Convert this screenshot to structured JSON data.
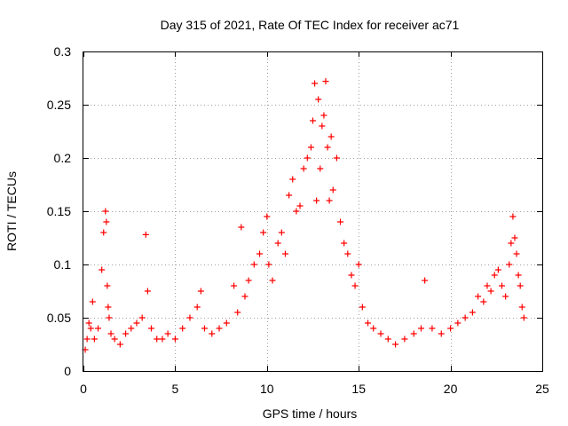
{
  "chart_data": {
    "type": "scatter",
    "title": "Day 315 of 2021, Rate Of TEC Index for receiver ac71",
    "xlabel": "GPS time / hours",
    "ylabel": "ROTI / TECUs",
    "xlim": [
      0,
      25
    ],
    "ylim": [
      0,
      0.3
    ],
    "x_ticks": [
      0,
      5,
      10,
      15,
      20,
      25
    ],
    "y_ticks": [
      0,
      0.05,
      0.1,
      0.15,
      0.2,
      0.25,
      0.3
    ],
    "x_tick_labels": [
      "0",
      "5",
      "10",
      "15",
      "20",
      "25"
    ],
    "y_tick_labels": [
      "0",
      "0.05",
      "0.1",
      "0.15",
      "0.2",
      "0.25",
      "0.3"
    ],
    "grid": true,
    "legend": "none",
    "marker": "plus",
    "color": "#ff0000",
    "series": [
      {
        "x": [
          0.1,
          0.2,
          0.3,
          0.4,
          0.5,
          0.6,
          0.8,
          1.0,
          1.1,
          1.2,
          1.25,
          1.3,
          1.35,
          1.4,
          1.5,
          1.7,
          2.0,
          2.3,
          2.6,
          2.9,
          3.2,
          3.4,
          3.5,
          3.7,
          4.0,
          4.3,
          4.6,
          5.0,
          5.4,
          5.8,
          6.2,
          6.4,
          6.6,
          7.0,
          7.4,
          7.8,
          8.2,
          8.4,
          8.6,
          8.8,
          9.0,
          9.3,
          9.6,
          9.8,
          10.0,
          10.1,
          10.3,
          10.6,
          10.8,
          11.0,
          11.2,
          11.4,
          11.6,
          11.8,
          12.0,
          12.2,
          12.4,
          12.5,
          12.6,
          12.7,
          12.8,
          12.9,
          13.0,
          13.1,
          13.2,
          13.3,
          13.4,
          13.5,
          13.6,
          13.8,
          14.0,
          14.2,
          14.4,
          14.6,
          14.8,
          15.0,
          15.2,
          15.5,
          15.8,
          16.2,
          16.6,
          17.0,
          17.5,
          18.0,
          18.4,
          18.6,
          19.0,
          19.5,
          20.0,
          20.4,
          20.8,
          21.2,
          21.5,
          21.8,
          22.0,
          22.2,
          22.4,
          22.6,
          22.8,
          23.0,
          23.2,
          23.3,
          23.4,
          23.5,
          23.6,
          23.7,
          23.8,
          23.9,
          24.0
        ],
        "y": [
          0.02,
          0.03,
          0.045,
          0.04,
          0.065,
          0.03,
          0.04,
          0.095,
          0.13,
          0.15,
          0.14,
          0.08,
          0.06,
          0.05,
          0.035,
          0.03,
          0.025,
          0.035,
          0.04,
          0.045,
          0.05,
          0.128,
          0.075,
          0.04,
          0.03,
          0.03,
          0.035,
          0.03,
          0.04,
          0.05,
          0.06,
          0.075,
          0.04,
          0.035,
          0.04,
          0.045,
          0.08,
          0.055,
          0.135,
          0.07,
          0.085,
          0.1,
          0.11,
          0.13,
          0.145,
          0.1,
          0.085,
          0.12,
          0.13,
          0.11,
          0.165,
          0.18,
          0.15,
          0.155,
          0.19,
          0.2,
          0.21,
          0.235,
          0.27,
          0.16,
          0.255,
          0.19,
          0.23,
          0.24,
          0.272,
          0.21,
          0.16,
          0.22,
          0.17,
          0.2,
          0.14,
          0.12,
          0.11,
          0.09,
          0.08,
          0.1,
          0.06,
          0.045,
          0.04,
          0.035,
          0.03,
          0.025,
          0.03,
          0.035,
          0.04,
          0.085,
          0.04,
          0.035,
          0.04,
          0.045,
          0.05,
          0.055,
          0.07,
          0.065,
          0.08,
          0.075,
          0.09,
          0.095,
          0.08,
          0.07,
          0.1,
          0.12,
          0.145,
          0.125,
          0.11,
          0.09,
          0.08,
          0.06,
          0.05
        ]
      }
    ]
  }
}
